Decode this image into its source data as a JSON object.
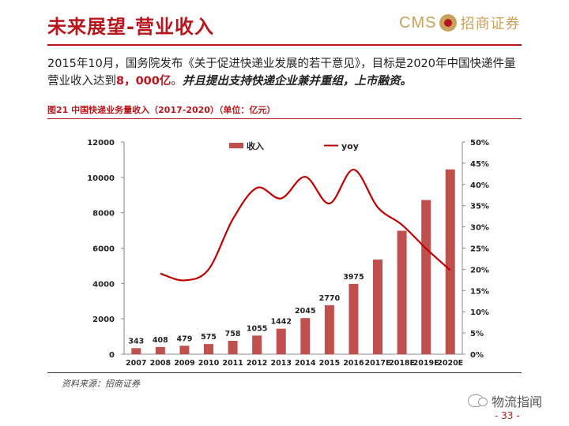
{
  "slide": {
    "title": "未来展望-营业收入",
    "brand_latin": "CMS",
    "brand_cn": "招商证券",
    "page_number": "- 33 -"
  },
  "paragraph": {
    "part1": "2015年10月，国务院发布《关于促进快递业发展的若干意见》，目标是2020年中国快递件量营业收入达到",
    "highlight": "8，000亿",
    "part2": "。",
    "italic": "并且提出支持快递企业兼并重组，上市融资。"
  },
  "figure": {
    "caption": "图21 中国快递业务量收入（2017-2020）（单位：亿元）",
    "source": "资料来源：招商证券"
  },
  "watermark": "物流指闻",
  "colors": {
    "bar": "#c0504d",
    "line": "#c00000",
    "accent": "#b8161c",
    "gold": "#c9a15c"
  },
  "chart_data": {
    "type": "bar",
    "categories": [
      "2007",
      "2008",
      "2009",
      "2010",
      "2011",
      "2012",
      "2013",
      "2014",
      "2015",
      "2016",
      "2017E",
      "2018E",
      "2019E",
      "2020E"
    ],
    "series": [
      {
        "name": "收入",
        "type": "bar",
        "axis": "left",
        "values": [
          343,
          408,
          479,
          575,
          758,
          1055,
          1442,
          2045,
          2770,
          3975,
          5350,
          6980,
          8720,
          10450
        ],
        "labels": [
          "343",
          "408",
          "479",
          "575",
          "758",
          "1055",
          "1442",
          "2045",
          "2770",
          "3975",
          "",
          "",
          "",
          ""
        ]
      },
      {
        "name": "yoy",
        "type": "line",
        "axis": "right",
        "values": [
          null,
          19.0,
          17.4,
          20.0,
          31.8,
          39.2,
          36.7,
          41.8,
          35.5,
          43.5,
          34.6,
          30.5,
          24.9,
          19.8
        ]
      }
    ],
    "y_left": {
      "lim": [
        0,
        12000
      ],
      "ticks": [
        "0",
        "2000",
        "4000",
        "6000",
        "8000",
        "10000",
        "12000"
      ]
    },
    "y_right": {
      "lim": [
        0,
        50
      ],
      "ticks": [
        "0%",
        "5%",
        "10%",
        "15%",
        "20%",
        "25%",
        "30%",
        "35%",
        "40%",
        "45%",
        "50%"
      ]
    },
    "legend_position": "top",
    "grid": false
  }
}
